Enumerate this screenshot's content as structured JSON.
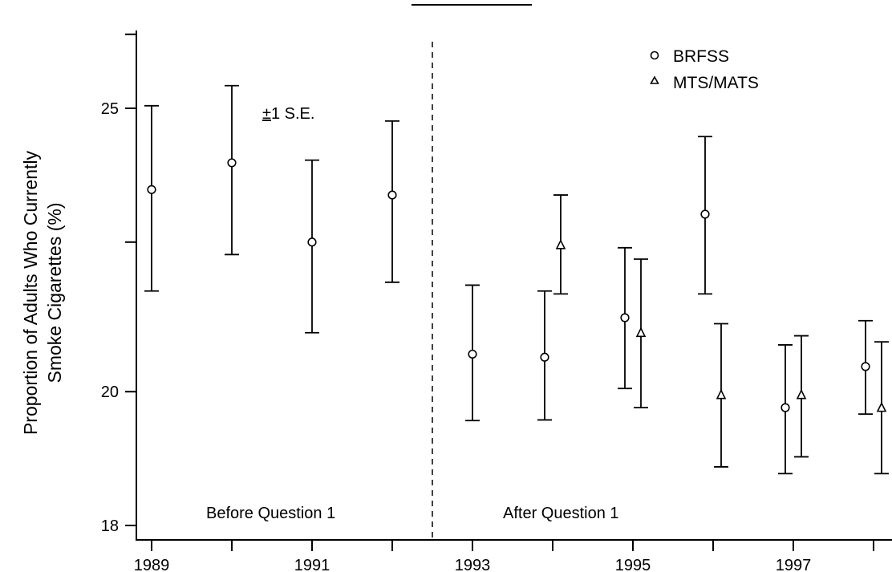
{
  "chart_data": {
    "type": "scatter",
    "subtype": "error-bar",
    "title": "",
    "ylabel_line1": "Proportion of Adults Who Currently",
    "ylabel_line2": "Smoke Cigarettes (%)",
    "xlabel": "",
    "y_scale": "log",
    "ylim": [
      17.7,
      26.5
    ],
    "xlim": [
      1988.85,
      1998.2
    ],
    "x_ticks": [
      1989,
      1991,
      1993,
      1995,
      1997
    ],
    "x_ticks_unlabeled": [
      1990,
      1992,
      1994,
      1996,
      1998
    ],
    "y_ticks": [
      18,
      20,
      25
    ],
    "y_ticks_unlabeled": [
      26.5,
      22.5
    ],
    "annotations": {
      "se_prefix": "±",
      "se_rest": "1 S.E.",
      "before_label": "Before Question 1",
      "after_label": "After Question 1",
      "divider_x": 1992.5
    },
    "series": [
      {
        "name": "BRFSS",
        "marker": "circle",
        "points": [
          {
            "x": 1989.0,
            "y": 23.45,
            "lo": 21.65,
            "hi": 25.05
          },
          {
            "x": 1990.0,
            "y": 23.95,
            "lo": 22.28,
            "hi": 25.45
          },
          {
            "x": 1991.0,
            "y": 22.5,
            "lo": 20.95,
            "hi": 24.0
          },
          {
            "x": 1992.0,
            "y": 23.35,
            "lo": 21.8,
            "hi": 24.75
          },
          {
            "x": 1993.0,
            "y": 20.6,
            "lo": 19.55,
            "hi": 21.75
          },
          {
            "x": 1993.9,
            "y": 20.55,
            "lo": 19.56,
            "hi": 21.65
          },
          {
            "x": 1994.9,
            "y": 21.2,
            "lo": 20.05,
            "hi": 22.4
          },
          {
            "x": 1995.9,
            "y": 23.0,
            "lo": 21.6,
            "hi": 24.45
          },
          {
            "x": 1996.9,
            "y": 19.75,
            "lo": 18.75,
            "hi": 20.75
          },
          {
            "x": 1997.9,
            "y": 20.4,
            "lo": 19.65,
            "hi": 21.15
          }
        ]
      },
      {
        "name": "MTS/MATS",
        "marker": "triangle",
        "points": [
          {
            "x": 1994.1,
            "y": 22.45,
            "lo": 21.6,
            "hi": 23.35
          },
          {
            "x": 1995.1,
            "y": 20.95,
            "lo": 19.75,
            "hi": 22.2
          },
          {
            "x": 1996.1,
            "y": 19.95,
            "lo": 18.85,
            "hi": 21.1
          },
          {
            "x": 1997.1,
            "y": 19.95,
            "lo": 19.0,
            "hi": 20.9
          },
          {
            "x": 1998.1,
            "y": 19.75,
            "lo": 18.75,
            "hi": 20.8
          }
        ]
      }
    ],
    "legend_position": "top-right"
  }
}
